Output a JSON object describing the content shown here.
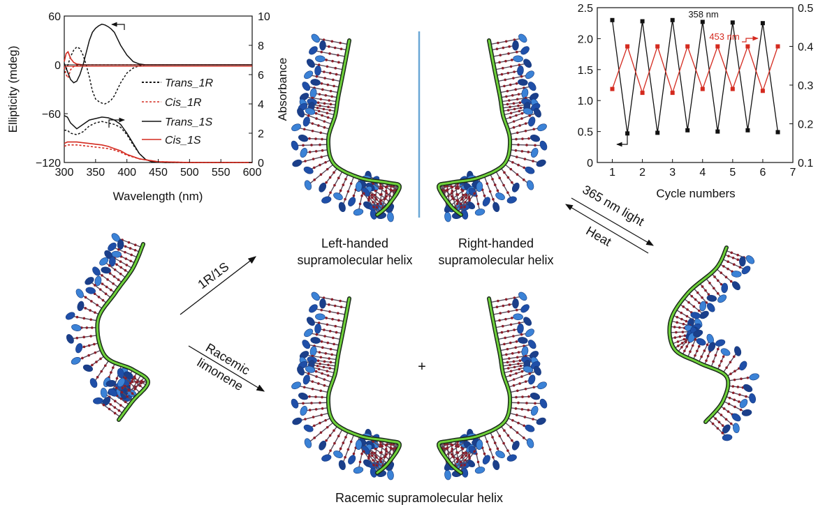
{
  "cd_chart": {
    "xlabel": "Wavelength (nm)",
    "ylabel_left": "Ellipticity (mdeg)",
    "ylabel_right": "Absorbance",
    "xticks": [
      "300",
      "350",
      "400",
      "450",
      "500",
      "550",
      "600"
    ],
    "yticks_left": [
      "60",
      "0",
      "−60",
      "−120"
    ],
    "yticks_right": [
      "10",
      "8",
      "6",
      "4",
      "2",
      "0"
    ],
    "legend": [
      "Trans_1R",
      "Cis_1R",
      "Trans_1S",
      "Cis_1S"
    ],
    "colors": {
      "trans": "#111111",
      "cis": "#d42a1f"
    }
  },
  "cycle_chart": {
    "xlabel": "Cycle numbers",
    "xticks": [
      "1",
      "2",
      "3",
      "4",
      "5",
      "6",
      "7"
    ],
    "yticks_left": [
      "2.5",
      "2.0",
      "1.5",
      "1.0",
      "0.5",
      "0"
    ],
    "yticks_right": [
      "0.5",
      "0.4",
      "0.3",
      "0.2",
      "0.1"
    ],
    "label_358": "358 nm",
    "label_453": "453 nm",
    "colors": {
      "s358": "#111111",
      "s453": "#d42a1f"
    }
  },
  "chart_data": [
    {
      "type": "line",
      "xlim": [
        300,
        600
      ],
      "ylim_left": [
        -120,
        60
      ],
      "ylim_right": [
        0,
        10
      ],
      "series": [
        {
          "name": "Trans_1R",
          "axis": "left",
          "style": "dashed",
          "color": "#111111",
          "x": [
            300,
            305,
            310,
            315,
            320,
            325,
            330,
            335,
            340,
            345,
            350,
            355,
            360,
            365,
            370,
            375,
            380,
            385,
            390,
            400,
            410,
            420,
            430,
            440,
            460,
            500,
            550,
            600
          ],
          "y": [
            -10,
            -2,
            10,
            18,
            22,
            20,
            12,
            0,
            -15,
            -32,
            -42,
            -45,
            -47,
            -48,
            -46,
            -43,
            -38,
            -30,
            -22,
            -10,
            -4,
            -1,
            0,
            0,
            0,
            0,
            0,
            0
          ]
        },
        {
          "name": "Cis_1R",
          "axis": "left",
          "style": "dashed",
          "color": "#d42a1f",
          "x": [
            300,
            303,
            306,
            310,
            315,
            320,
            330,
            340,
            360,
            380,
            400,
            450,
            500,
            600
          ],
          "y": [
            -3,
            -12,
            -16,
            -6,
            -2,
            -1,
            0,
            0,
            0,
            0,
            0,
            0,
            0,
            0
          ]
        },
        {
          "name": "Trans_1S",
          "axis": "left",
          "style": "solid",
          "color": "#111111",
          "x": [
            300,
            305,
            310,
            315,
            320,
            325,
            330,
            335,
            340,
            345,
            350,
            355,
            360,
            365,
            370,
            375,
            380,
            385,
            390,
            400,
            410,
            420,
            430,
            440,
            460,
            500,
            550,
            600
          ],
          "y": [
            2,
            -8,
            -18,
            -22,
            -20,
            -12,
            0,
            15,
            30,
            40,
            45,
            48,
            50,
            49,
            47,
            44,
            40,
            32,
            24,
            12,
            4,
            1,
            0,
            0,
            0,
            0,
            0,
            0
          ]
        },
        {
          "name": "Cis_1S",
          "axis": "left",
          "style": "solid",
          "color": "#d42a1f",
          "x": [
            300,
            303,
            306,
            310,
            315,
            320,
            330,
            340,
            360,
            380,
            400,
            450,
            500,
            600
          ],
          "y": [
            4,
            14,
            16,
            8,
            3,
            1,
            0,
            0,
            0,
            0,
            0,
            0,
            0,
            0
          ]
        },
        {
          "name": "Trans_abs_dashed",
          "axis": "right",
          "style": "dashed",
          "color": "#111111",
          "x": [
            300,
            305,
            310,
            320,
            330,
            340,
            350,
            360,
            370,
            380,
            390,
            400,
            410,
            420,
            430,
            440,
            460,
            500,
            600
          ],
          "y": [
            2.2,
            2.2,
            2.0,
            1.9,
            2.1,
            2.5,
            2.7,
            2.8,
            2.7,
            2.6,
            2.4,
            1.9,
            1.2,
            0.6,
            0.2,
            0.05,
            0,
            0,
            0
          ]
        },
        {
          "name": "Trans_abs_solid",
          "axis": "right",
          "style": "solid",
          "color": "#111111",
          "x": [
            300,
            305,
            310,
            320,
            330,
            340,
            350,
            360,
            370,
            380,
            390,
            400,
            410,
            420,
            430,
            440,
            460,
            500,
            600
          ],
          "y": [
            3.2,
            3.1,
            2.7,
            2.3,
            2.6,
            2.9,
            3.0,
            3.1,
            3.05,
            2.9,
            2.6,
            2.0,
            1.3,
            0.6,
            0.2,
            0.05,
            0,
            0,
            0
          ]
        },
        {
          "name": "Cis_abs_dashed",
          "axis": "right",
          "style": "dashed",
          "color": "#d42a1f",
          "x": [
            300,
            305,
            310,
            320,
            330,
            340,
            350,
            360,
            370,
            380,
            390,
            400,
            420,
            450,
            500,
            600
          ],
          "y": [
            1.1,
            1.2,
            1.2,
            1.2,
            1.15,
            1.1,
            1.05,
            1.0,
            0.95,
            0.85,
            0.7,
            0.5,
            0.25,
            0.05,
            0,
            0
          ]
        },
        {
          "name": "Cis_abs_solid",
          "axis": "right",
          "style": "solid",
          "color": "#d42a1f",
          "x": [
            300,
            305,
            310,
            320,
            330,
            340,
            350,
            360,
            370,
            380,
            390,
            400,
            420,
            450,
            500,
            600
          ],
          "y": [
            1.3,
            1.4,
            1.4,
            1.4,
            1.35,
            1.3,
            1.25,
            1.2,
            1.1,
            0.95,
            0.8,
            0.55,
            0.25,
            0.05,
            0,
            0
          ]
        }
      ]
    },
    {
      "type": "line",
      "xlim": [
        0.5,
        7
      ],
      "ylim_left": [
        0,
        2.5
      ],
      "ylim_right": [
        0.1,
        0.5
      ],
      "series": [
        {
          "name": "358 nm",
          "axis": "left",
          "color": "#111111",
          "x": [
            1,
            1.5,
            2,
            2.5,
            3,
            3.5,
            4,
            4.5,
            5,
            5.5,
            6,
            6.5
          ],
          "y": [
            2.3,
            0.47,
            2.28,
            0.48,
            2.3,
            0.52,
            2.27,
            0.5,
            2.26,
            0.52,
            2.25,
            0.49
          ]
        },
        {
          "name": "453 nm",
          "axis": "right",
          "color": "#d42a1f",
          "x": [
            1,
            1.5,
            2,
            2.5,
            3,
            3.5,
            4,
            4.5,
            5,
            5.5,
            6,
            6.5
          ],
          "y": [
            0.29,
            0.4,
            0.28,
            0.4,
            0.28,
            0.4,
            0.29,
            0.4,
            0.29,
            0.4,
            0.285,
            0.4
          ]
        }
      ]
    }
  ],
  "diagram": {
    "caption_left": [
      "Left-handed",
      "supramolecular helix"
    ],
    "caption_right": [
      "Right-handed",
      "supramolecular helix"
    ],
    "caption_racemic": "Racemic supramolecular helix",
    "arrow_top_label": "1R/1S",
    "arrow_bottom_label": [
      "Racemic",
      "limonene"
    ],
    "light_label": "365 nm light",
    "heat_label": "Heat",
    "plus": "+"
  }
}
